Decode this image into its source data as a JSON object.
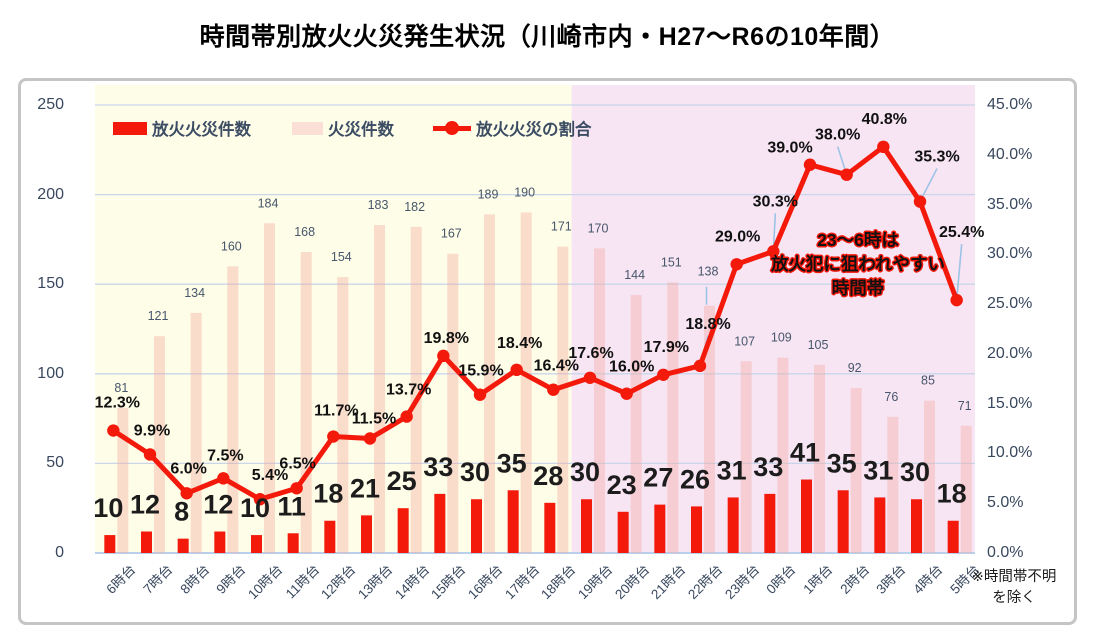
{
  "title": "時間帯別放火火災発生状況（川崎市内・H27～R6の10年間）",
  "footnote": {
    "line1": "※時間帯不明",
    "line2": "を除く"
  },
  "annotation": {
    "lines": [
      "23～6時は",
      "放火犯に狙われやすい",
      "時間帯"
    ]
  },
  "legend": [
    {
      "label": "放火火災件数",
      "type": "bar",
      "color": "#f3190b"
    },
    {
      "label": "火災件数",
      "type": "bar",
      "color": "#fbdfd6"
    },
    {
      "label": "放火火災の割合",
      "type": "line",
      "color": "#f3190b"
    }
  ],
  "colors": {
    "arson_bar": "#f3190b",
    "fire_bar_rgba": "rgba(246,170,160,0.4)",
    "ratio_line": "#f3190b",
    "day_background": "#fefde8",
    "night_background": "#f7e5f4",
    "gridline": "#c9d6ea",
    "axis_line": "#b9cfec",
    "leader_line": "#9dc3e6",
    "axis_text": "#39485e",
    "fire_label_text": "#47566b",
    "count_label_text": "#1c1c1c",
    "pct_label_text": "#111111"
  },
  "chart_data": {
    "type": "combo-bar-line",
    "categories": [
      "6時台",
      "7時台",
      "8時台",
      "9時台",
      "10時台",
      "11時台",
      "12時台",
      "13時台",
      "14時台",
      "15時台",
      "16時台",
      "17時台",
      "18時台",
      "19時台",
      "20時台",
      "21時台",
      "22時台",
      "23時台",
      "0時台",
      "1時台",
      "2時台",
      "3時台",
      "4時台",
      "5時台"
    ],
    "series": [
      {
        "name": "放火火災件数",
        "type": "bar",
        "axis": "left",
        "values": [
          10,
          12,
          8,
          12,
          10,
          11,
          18,
          21,
          25,
          33,
          30,
          35,
          28,
          30,
          23,
          27,
          26,
          31,
          33,
          41,
          35,
          31,
          30,
          18
        ]
      },
      {
        "name": "火災件数",
        "type": "bar",
        "axis": "left",
        "values": [
          81,
          121,
          134,
          160,
          184,
          168,
          154,
          183,
          182,
          167,
          189,
          190,
          171,
          170,
          144,
          151,
          138,
          107,
          109,
          105,
          92,
          76,
          85,
          71
        ]
      },
      {
        "name": "放火火災の割合",
        "type": "line",
        "axis": "right",
        "values": [
          12.3,
          9.9,
          6.0,
          7.5,
          5.4,
          6.5,
          11.7,
          11.5,
          13.7,
          19.8,
          15.9,
          18.4,
          16.4,
          17.6,
          16.0,
          17.9,
          18.8,
          29.0,
          30.3,
          39.0,
          38.0,
          40.8,
          35.3,
          25.4
        ],
        "labels": [
          "12.3%",
          "9.9%",
          "6.0%",
          "7.5%",
          "5.4%",
          "6.5%",
          "11.7%",
          "11.5%",
          "13.7%",
          "19.8%",
          "15.9%",
          "18.4%",
          "16.4%",
          "17.6%",
          "16.0%",
          "17.9%",
          "18.8%",
          "29.0%",
          "30.3%",
          "39.0%",
          "38.0%",
          "40.8%",
          "35.3%",
          "25.4%"
        ]
      }
    ],
    "left_axis": {
      "min": 0,
      "max": 250,
      "ticks": [
        0,
        50,
        100,
        150,
        200,
        250
      ],
      "tick_labels": [
        "0",
        "50",
        "100",
        "150",
        "200",
        "250"
      ]
    },
    "right_axis": {
      "min": 0,
      "max": 45,
      "tick_labels": [
        "0.0%",
        "5.0%",
        "10.0%",
        "15.0%",
        "20.0%",
        "25.0%",
        "30.0%",
        "35.0%",
        "40.0%",
        "45.0%"
      ]
    },
    "regions": [
      {
        "name": "day",
        "from": "6時台",
        "to": "18時台"
      },
      {
        "name": "night",
        "from": "19時台",
        "to": "5時台"
      }
    ],
    "grid": true,
    "legend_position": "top-left-inside"
  }
}
